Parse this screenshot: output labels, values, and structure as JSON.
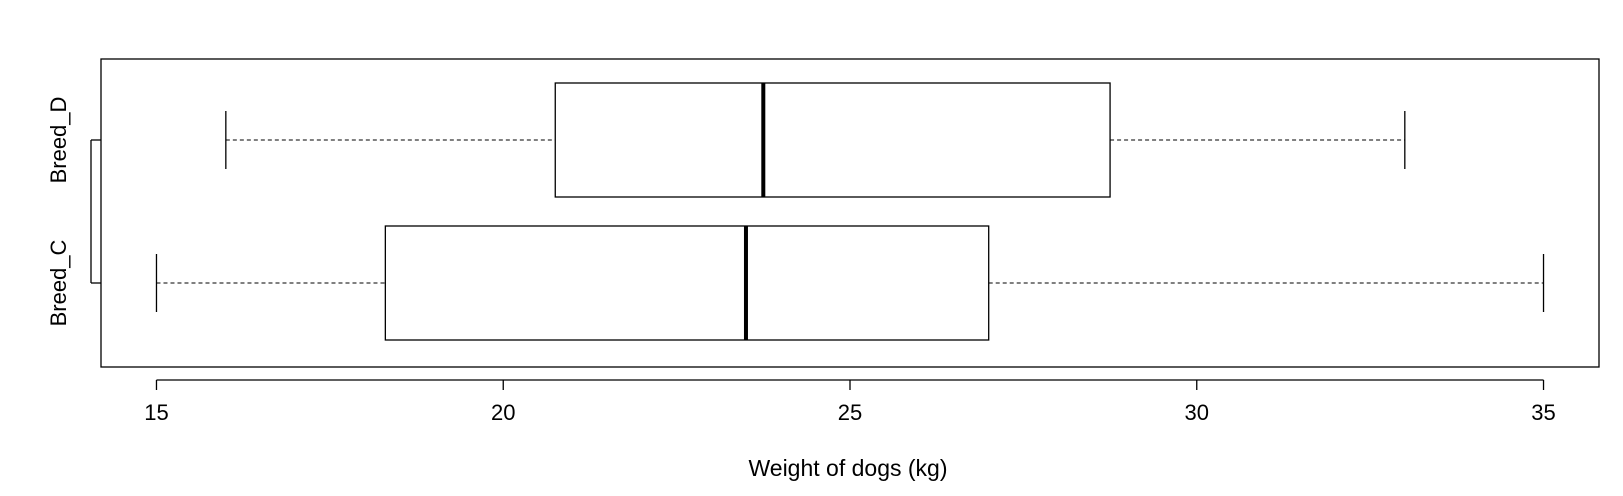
{
  "chart_data": {
    "type": "boxplot",
    "orientation": "horizontal",
    "title": "",
    "xlabel": "Weight of dogs (kg)",
    "ylabel": "",
    "xlim": [
      14.2,
      35.8
    ],
    "xticks": [
      15,
      20,
      25,
      30,
      35
    ],
    "grid": false,
    "legend": "none",
    "categories": [
      "Breed_C",
      "Breed_D"
    ],
    "boxes": [
      {
        "name": "Breed_C",
        "whisker_low": 15,
        "q1": 18.3,
        "median": 23.5,
        "q3": 27,
        "whisker_high": 35
      },
      {
        "name": "Breed_D",
        "whisker_low": 16,
        "q1": 20.75,
        "median": 23.75,
        "q3": 28.75,
        "whisker_high": 33
      }
    ]
  }
}
